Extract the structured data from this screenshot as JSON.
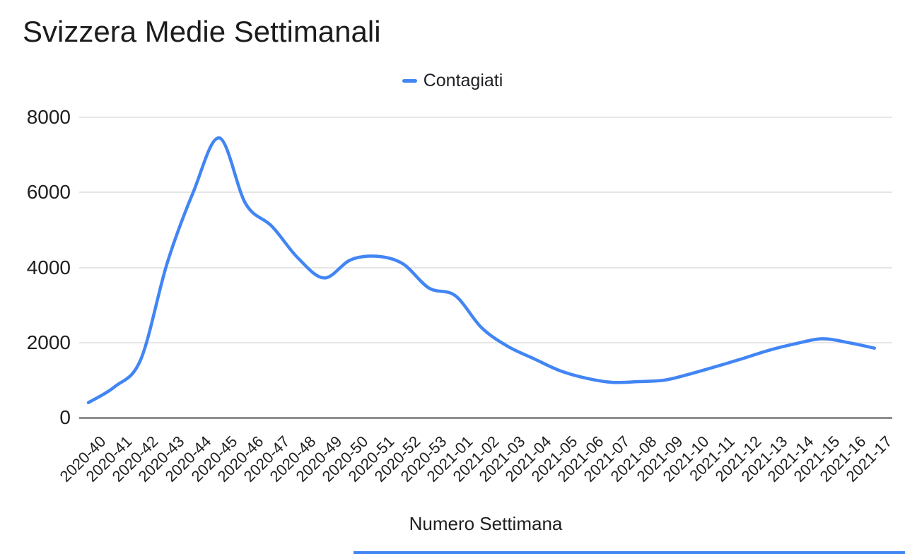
{
  "title": "Svizzera Medie Settimanali",
  "legend": {
    "items": [
      {
        "label": "Contagiati",
        "color": "#4285f4"
      }
    ]
  },
  "x_axis_title": "Numero Settimana",
  "y_tick_labels": [
    "0",
    "2000",
    "4000",
    "6000",
    "8000"
  ],
  "colors": {
    "series_blue": "#4285f4",
    "gridline": "#e6e6e6",
    "axis_line": "#8f8f8f",
    "text": "#1f1f1f",
    "background": "#ffffff",
    "bottom_strip": "#4285f4"
  },
  "chart_data": {
    "type": "line",
    "title": "Svizzera Medie Settimanali",
    "xlabel": "Numero Settimana",
    "ylabel": "",
    "ylim": [
      0,
      8000
    ],
    "y_ticks": [
      0,
      2000,
      4000,
      6000,
      8000
    ],
    "grid": true,
    "legend_position": "top",
    "smooth": true,
    "categories": [
      "2020-40",
      "2020-41",
      "2020-42",
      "2020-43",
      "2020-44",
      "2020-45",
      "2020-46",
      "2020-47",
      "2020-48",
      "2020-49",
      "2020-50",
      "2020-51",
      "2020-52",
      "2020-53",
      "2021-01",
      "2021-02",
      "2021-03",
      "2021-04",
      "2021-05",
      "2021-06",
      "2021-07",
      "2021-08",
      "2021-09",
      "2021-10",
      "2021-11",
      "2021-12",
      "2021-13",
      "2021-14",
      "2021-15",
      "2021-16",
      "2021-17"
    ],
    "series": [
      {
        "name": "Contagiati",
        "color": "#4285f4",
        "values": [
          400,
          820,
          1550,
          4100,
          6000,
          7450,
          5700,
          5100,
          4250,
          3720,
          4200,
          4300,
          4100,
          3450,
          3250,
          2400,
          1900,
          1570,
          1250,
          1050,
          940,
          960,
          1000,
          1170,
          1370,
          1580,
          1800,
          1970,
          2100,
          2000,
          1850
        ]
      }
    ]
  }
}
